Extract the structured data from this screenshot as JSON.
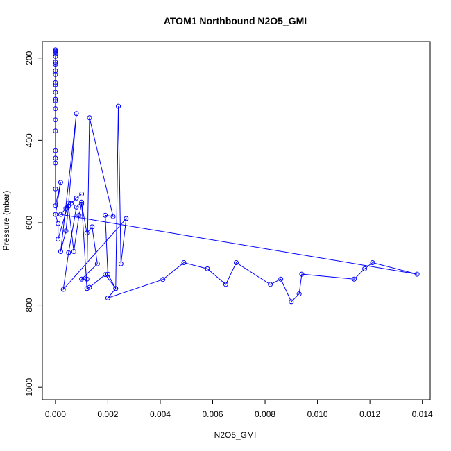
{
  "chart_data": {
    "type": "line",
    "title": "ATOM1 Northbound N2O5_GMI",
    "xlabel": "N2O5_GMI",
    "ylabel": "Pressure (mbar)",
    "xlim": [
      -0.0005,
      0.0143
    ],
    "ylim": [
      1030,
      160
    ],
    "y_reversed": true,
    "x_ticks": [
      0.0,
      0.002,
      0.004,
      0.006,
      0.008,
      0.01,
      0.012,
      0.014
    ],
    "x_tick_labels": [
      "0.000",
      "0.002",
      "0.004",
      "0.006",
      "0.008",
      "0.010",
      "0.012",
      "0.014"
    ],
    "y_ticks": [
      200,
      400,
      600,
      800,
      1000
    ],
    "y_tick_labels": [
      "200",
      "400",
      "600",
      "800",
      "1000"
    ],
    "grid": false,
    "line_color": "#0000ff",
    "series": [
      {
        "x": [
          0.0,
          0.0,
          0.0,
          0.0,
          0.0,
          0.0,
          0.0,
          0.0,
          0.0,
          0.0,
          0.0,
          0.0,
          0.0,
          0.0,
          0.0,
          0.0,
          0.0,
          0.0,
          0.0,
          0.0,
          0.0,
          0.0,
          0.0002,
          0.0,
          0.0001,
          0.0001,
          0.0005,
          0.0008,
          0.0002,
          0.0004,
          0.0005,
          0.0007,
          0.0009,
          0.001,
          0.0012,
          0.0014,
          0.0016,
          0.001,
          0.0012,
          0.0013,
          0.0022,
          0.0019,
          0.002,
          0.0023,
          0.0024,
          0.0025,
          0.0027,
          0.0003,
          0.0005,
          0.0008,
          0.001,
          0.0012,
          0.0013,
          0.0019,
          0.0023,
          0.002,
          0.0041,
          0.0049,
          0.0058,
          0.0065,
          0.0069,
          0.0082,
          0.0086,
          0.009,
          0.0093,
          0.0094,
          0.0114,
          0.0118,
          0.0121,
          0.0138,
          0.0002,
          0.0004,
          0.0006,
          0.0008,
          0.001
        ],
        "y": [
          183,
          196,
          215,
          231,
          260,
          283,
          304,
          323,
          350,
          377,
          425,
          443,
          455,
          300,
          265,
          240,
          210,
          190,
          185,
          180,
          518,
          559,
          502,
          580,
          602,
          640,
          552,
          335,
          670,
          620,
          560,
          670,
          582,
          555,
          625,
          610,
          700,
          737,
          737,
          345,
          585,
          582,
          725,
          760,
          317,
          700,
          590,
          762,
          673,
          562,
          550,
          760,
          757,
          726,
          760,
          783,
          738,
          697,
          712,
          750,
          697,
          750,
          737,
          792,
          773,
          725,
          737,
          712,
          697,
          725,
          580,
          565,
          553,
          540,
          530
        ]
      }
    ]
  }
}
